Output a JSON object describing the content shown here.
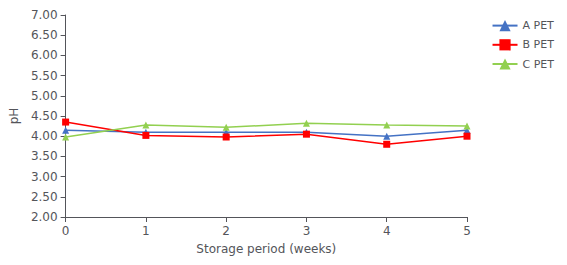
{
  "chart_data": {
    "type": "line",
    "xlabel": "Storage period (weeks)",
    "ylabel": "pH",
    "x": [
      0,
      1,
      2,
      3,
      4,
      5
    ],
    "series": [
      {
        "name": "A PET",
        "color": "#4472C4",
        "marker": "triangle",
        "values": [
          4.15,
          4.1,
          4.1,
          4.1,
          4.0,
          4.15
        ]
      },
      {
        "name": "B PET",
        "color": "#FF0000",
        "marker": "square",
        "values": [
          4.35,
          4.02,
          3.98,
          4.05,
          3.8,
          4.0
        ]
      },
      {
        "name": "C PET",
        "color": "#92D050",
        "marker": "triangle",
        "values": [
          3.98,
          4.28,
          4.22,
          4.32,
          4.28,
          4.25
        ]
      }
    ],
    "xlim": [
      0,
      5
    ],
    "xticks": [
      0,
      1,
      2,
      3,
      4,
      5
    ],
    "ylim": [
      2,
      7
    ],
    "yticks": [
      {
        "value": 2,
        "label": "2.00"
      },
      {
        "value": 2.5,
        "label": "2.50"
      },
      {
        "value": 3,
        "label": "3.00"
      },
      {
        "value": 3.5,
        "label": "3.50"
      },
      {
        "value": 4,
        "label": "4.00"
      },
      {
        "value": 4.5,
        "label": "4.50"
      },
      {
        "value": 5,
        "label": "5.00"
      },
      {
        "value": 5.5,
        "label": "5.50"
      },
      {
        "value": 6,
        "label": "6.00"
      },
      {
        "value": 6.5,
        "label": "6.50"
      },
      {
        "value": 7,
        "label": "7.00"
      }
    ],
    "grid": false,
    "legend": "upper right"
  }
}
